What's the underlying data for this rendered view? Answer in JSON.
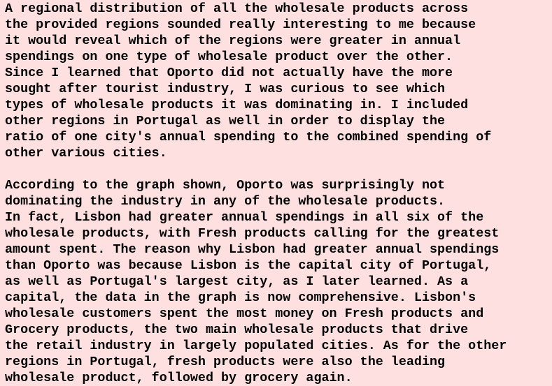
{
  "paragraphs": [
    {
      "lines": [
        "A regional distribution of all the wholesale products across",
        "the provided regions sounded really interesting to me because",
        "it would reveal which of the regions were greater in annual",
        "spendings on one type of wholesale product over the other.",
        "Since I learned that Oporto did not actually have the more",
        "sought after tourist industry, I was curious to see which",
        "types of wholesale products it was dominating in. I included",
        "other regions in Portugal as well in order to display the",
        "ratio of one city's annual spending to the combined spending of",
        "other various cities."
      ]
    },
    {
      "lines": [
        "According to the graph shown, Oporto was surprisingly not",
        "dominating the industry in any of the wholesale products.",
        "In fact, Lisbon had greater annual spendings in all six of the",
        "wholesale products, with Fresh products calling for the greatest",
        "amount spent. The reason why Lisbon had greater annual spendings",
        "than Oporto was because Lisbon is the capital city of Portugal,",
        "as well as Portugal's largest city, as I later learned. As a",
        "capital, the data in the graph is now comprehensive. Lisbon's",
        "wholesale customers spent the most money on Fresh products and",
        "Grocery products, the two main wholesale products that drive",
        "the retail industry in largely populated cities. As for the other",
        "regions in Portugal, fresh products were also the leading",
        "wholesale product, followed by grocery again."
      ]
    }
  ],
  "colors": {
    "background": "#ffe0e0",
    "text": "#000000"
  }
}
